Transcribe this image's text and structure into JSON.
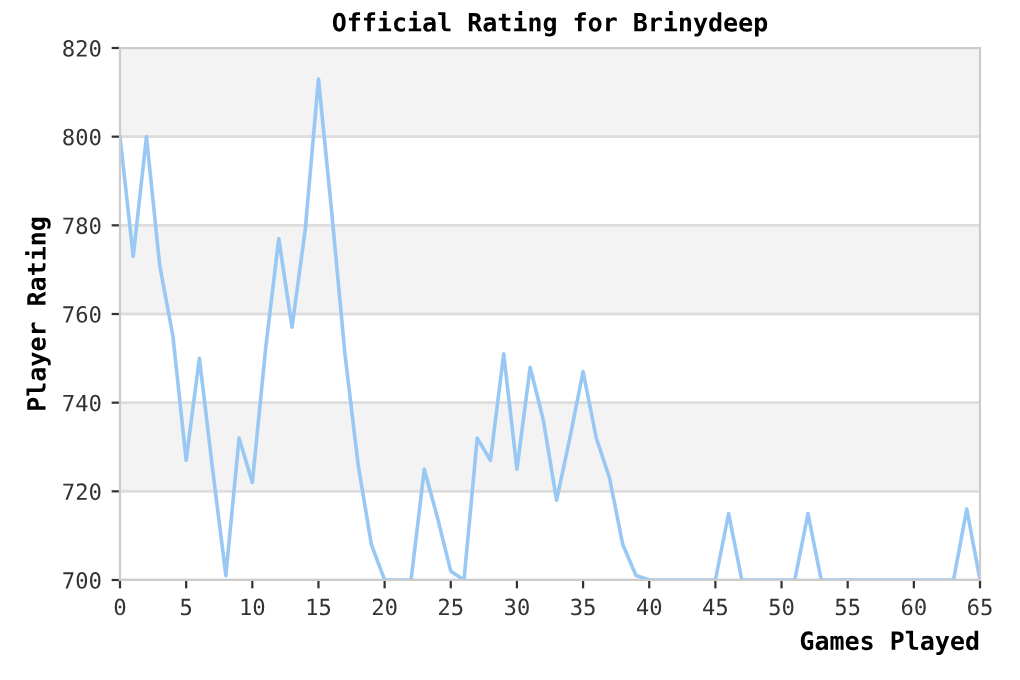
{
  "chart_data": {
    "type": "line",
    "title": "Official Rating for Brinydeep",
    "xlabel": "Games Played",
    "ylabel": "Player Rating",
    "x": [
      0,
      1,
      2,
      3,
      4,
      5,
      6,
      7,
      8,
      9,
      10,
      11,
      12,
      13,
      14,
      15,
      16,
      17,
      18,
      19,
      20,
      21,
      22,
      23,
      24,
      25,
      26,
      27,
      28,
      29,
      30,
      31,
      32,
      33,
      34,
      35,
      36,
      37,
      38,
      39,
      40,
      41,
      42,
      43,
      44,
      45,
      46,
      47,
      48,
      49,
      50,
      51,
      52,
      53,
      54,
      55,
      56,
      57,
      58,
      59,
      60,
      61,
      62,
      63,
      64,
      65
    ],
    "series": [
      {
        "color": "#99c8f5",
        "values": [
          800,
          773,
          800,
          771,
          755,
          727,
          750,
          725,
          701,
          732,
          722,
          752,
          777,
          757,
          779,
          813,
          783,
          751,
          726,
          708,
          700,
          700,
          700,
          725,
          714,
          702,
          700,
          732,
          727,
          751,
          725,
          748,
          736,
          718,
          732,
          747,
          732,
          723,
          708,
          701,
          700,
          700,
          700,
          700,
          700,
          700,
          715,
          700,
          700,
          700,
          700,
          700,
          715,
          700,
          700,
          700,
          700,
          700,
          700,
          700,
          700,
          700,
          700,
          700,
          716,
          700
        ]
      }
    ],
    "xlim": [
      0,
      65
    ],
    "ylim": [
      700,
      820
    ],
    "xticks": [
      0,
      5,
      10,
      15,
      20,
      25,
      30,
      35,
      40,
      45,
      50,
      55,
      60,
      65
    ],
    "yticks": [
      700,
      720,
      740,
      760,
      780,
      800,
      820
    ],
    "grid": "y",
    "marker": "none",
    "line_style": "solid"
  }
}
